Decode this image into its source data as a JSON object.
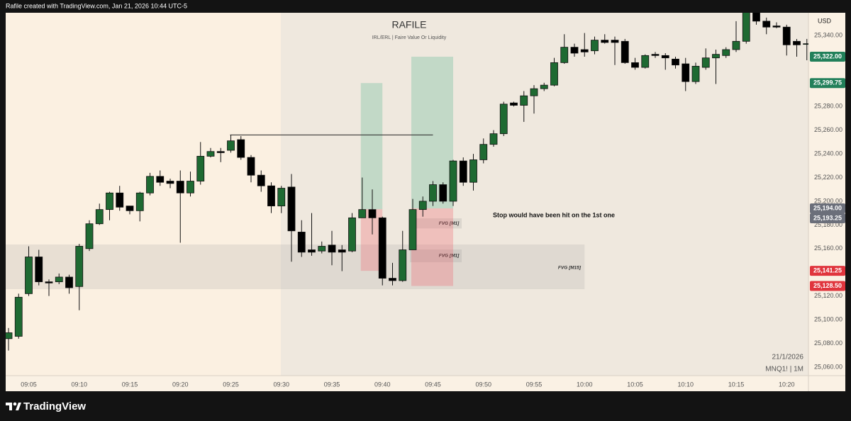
{
  "header": {
    "credit": "Rafile created with TradingView.com, Jan 21, 2026 10:44 UTC-5"
  },
  "footer": {
    "brand": "TradingView"
  },
  "chart_data": {
    "type": "candlestick",
    "title": "RAFILE",
    "subtitle": "IRL/ERL | Faire Value Or Liquidity",
    "currency": "USD",
    "date": "21/1/2026",
    "symbol": "MNQ1! | 1M",
    "annotation": "Stop would have been hit on the 1st one",
    "up_color": "#1e6a32",
    "down_color": "#000000",
    "categories": [
      null,
      null,
      "09:05",
      null,
      null,
      null,
      null,
      "09:10",
      null,
      null,
      null,
      null,
      "09:15",
      null,
      null,
      null,
      null,
      "09:20",
      null,
      null,
      null,
      null,
      "09:25",
      null,
      null,
      null,
      null,
      "09:30",
      null,
      null,
      null,
      null,
      "09:35",
      null,
      null,
      null,
      null,
      "09:40",
      null,
      null,
      null,
      null,
      "09:45",
      null,
      null,
      null,
      null,
      "09:50",
      null,
      null,
      null,
      null,
      "09:55",
      null,
      null,
      null,
      null,
      "10:00",
      null,
      null,
      null,
      null,
      "10:05",
      null,
      null,
      null,
      null,
      "10:10",
      null,
      null,
      null,
      null,
      "10:15",
      null,
      null,
      null,
      null,
      "10:20",
      null,
      null
    ],
    "open": [
      25084,
      25086,
      25122,
      25153,
      25132,
      25132,
      25136,
      25128,
      25160,
      25181,
      25193,
      25207,
      25196,
      25192,
      25207,
      25221,
      25217,
      25217,
      25207,
      25217,
      25238,
      25242,
      25243,
      25252,
      25237,
      25222,
      25213,
      25196,
      25212,
      25174,
      25159,
      25158,
      25163,
      25159,
      25158,
      25186,
      25193,
      25186,
      25135,
      25133,
      25159,
      25193,
      25200,
      25214,
      25200,
      25234,
      25216,
      25235,
      25248,
      25257,
      25283,
      25281,
      25289,
      25295,
      25298,
      25317,
      25330,
      25328,
      25327,
      25336,
      25336,
      25335,
      25317,
      25313,
      25324,
      25323,
      25320,
      25316,
      25301,
      25313,
      25321,
      25323,
      25328,
      25335,
      25361,
      25352,
      25348,
      25347,
      25335,
      25333
    ],
    "high": [
      25093,
      25122,
      25162,
      25159,
      25134,
      25139,
      25138,
      25164,
      25184,
      25198,
      25208,
      25213,
      25196,
      25208,
      25224,
      25226,
      25219,
      25226,
      25225,
      25250,
      25245,
      25245,
      25256,
      25255,
      25239,
      25226,
      25216,
      25213,
      25223,
      25184,
      25190,
      25166,
      25175,
      25163,
      25190,
      25220,
      25210,
      25187,
      25148,
      25175,
      25202,
      25204,
      25217,
      25216,
      25235,
      25237,
      25240,
      25253,
      25260,
      25284,
      25284,
      25293,
      25298,
      25300,
      25321,
      25341,
      25333,
      25342,
      25339,
      25341,
      25339,
      25337,
      25321,
      25324,
      25326,
      25325,
      25322,
      25321,
      25317,
      25329,
      25328,
      25330,
      25352,
      25364,
      25364,
      25355,
      25351,
      25349,
      25337,
      25337
    ],
    "low": [
      25074,
      25084,
      25120,
      25129,
      25120,
      25130,
      25122,
      25108,
      25158,
      25180,
      25184,
      25192,
      25189,
      25183,
      25205,
      25213,
      25211,
      25165,
      25204,
      25214,
      25237,
      25233,
      25241,
      25235,
      25216,
      25208,
      25190,
      25190,
      25149,
      25153,
      25154,
      25156,
      25146,
      25141,
      25157,
      25186,
      25172,
      25129,
      25129,
      25132,
      25159,
      25187,
      25196,
      25198,
      25196,
      25213,
      25209,
      25232,
      25246,
      25255,
      25280,
      25267,
      25274,
      25293,
      25297,
      25316,
      25322,
      25322,
      25324,
      25333,
      25315,
      25316,
      25311,
      25312,
      25321,
      25311,
      25312,
      25293,
      25299,
      25311,
      25299,
      25321,
      25326,
      25333,
      25349,
      25341,
      25346,
      25323,
      25322,
      25319
    ],
    "close": [
      25089,
      25119,
      25153,
      25132,
      25131,
      25136,
      25127,
      25162,
      25181,
      25193,
      25207,
      25195,
      25192,
      25207,
      25221,
      25216,
      25215,
      25207,
      25217,
      25238,
      25242,
      25241,
      25251,
      25237,
      25222,
      25213,
      25196,
      25211,
      25175,
      25157,
      25157,
      25162,
      25157,
      25157,
      25186,
      25193,
      25186,
      25135,
      25133,
      25159,
      25193,
      25200,
      25214,
      25200,
      25234,
      25216,
      25235,
      25248,
      25257,
      25282,
      25281,
      25289,
      25295,
      25298,
      25317,
      25330,
      25325,
      25326,
      25336,
      25334,
      25334,
      25317,
      25313,
      25323,
      25323,
      25321,
      25315,
      25301,
      25314,
      25321,
      25324,
      25328,
      25335,
      25361,
      25352,
      25347,
      25347,
      25332,
      25332,
      25333
    ],
    "ylim": [
      25052.8,
      25359.1
    ],
    "yticks": [
      {
        "value": 25060,
        "label": "25,060.00"
      },
      {
        "value": 25080,
        "label": "25,080.00"
      },
      {
        "value": 25100,
        "label": "25,100.00"
      },
      {
        "value": 25120,
        "label": "25,120.00"
      },
      {
        "value": 25140,
        "label": "25,140.00"
      },
      {
        "value": 25160,
        "label": "25,160.00"
      },
      {
        "value": 25180,
        "label": "25,180.00"
      },
      {
        "value": 25200,
        "label": "25,200.00"
      },
      {
        "value": 25220,
        "label": "25,220.00"
      },
      {
        "value": 25240,
        "label": "25,240.00"
      },
      {
        "value": 25260,
        "label": "25,260.00"
      },
      {
        "value": 25280,
        "label": "25,280.00"
      },
      {
        "value": 25300,
        "label": "25,300.00"
      },
      {
        "value": 25320,
        "label": "25,320.00"
      },
      {
        "value": 25340,
        "label": "25,340.00"
      }
    ],
    "level": 25256,
    "zones": [
      {
        "label": "FVG [M15]",
        "top": 25163.5,
        "bottom": 25125.8
      },
      {
        "label": "FVG [M1]",
        "top": 25185.6,
        "bottom": 25177
      },
      {
        "label": "FVG [M1]",
        "top": 25159.3,
        "bottom": 25148.5
      }
    ],
    "positions": [
      {
        "target": {
          "value": 25299.75,
          "label": "25,299.75"
        },
        "entry": {
          "value": 25193.25,
          "label": "25,193.25"
        },
        "stop": {
          "value": 25141.25,
          "label": "25,141.25"
        }
      },
      {
        "target": {
          "value": 25322,
          "label": "25,322.00"
        },
        "entry": {
          "value": 25194,
          "label": "25,194.00"
        },
        "stop": {
          "value": 25128.5,
          "label": "25,128.50"
        }
      }
    ],
    "target_color": "#22805a",
    "entry_color": "#6b6f7a",
    "stop_color": "#e0353d"
  }
}
